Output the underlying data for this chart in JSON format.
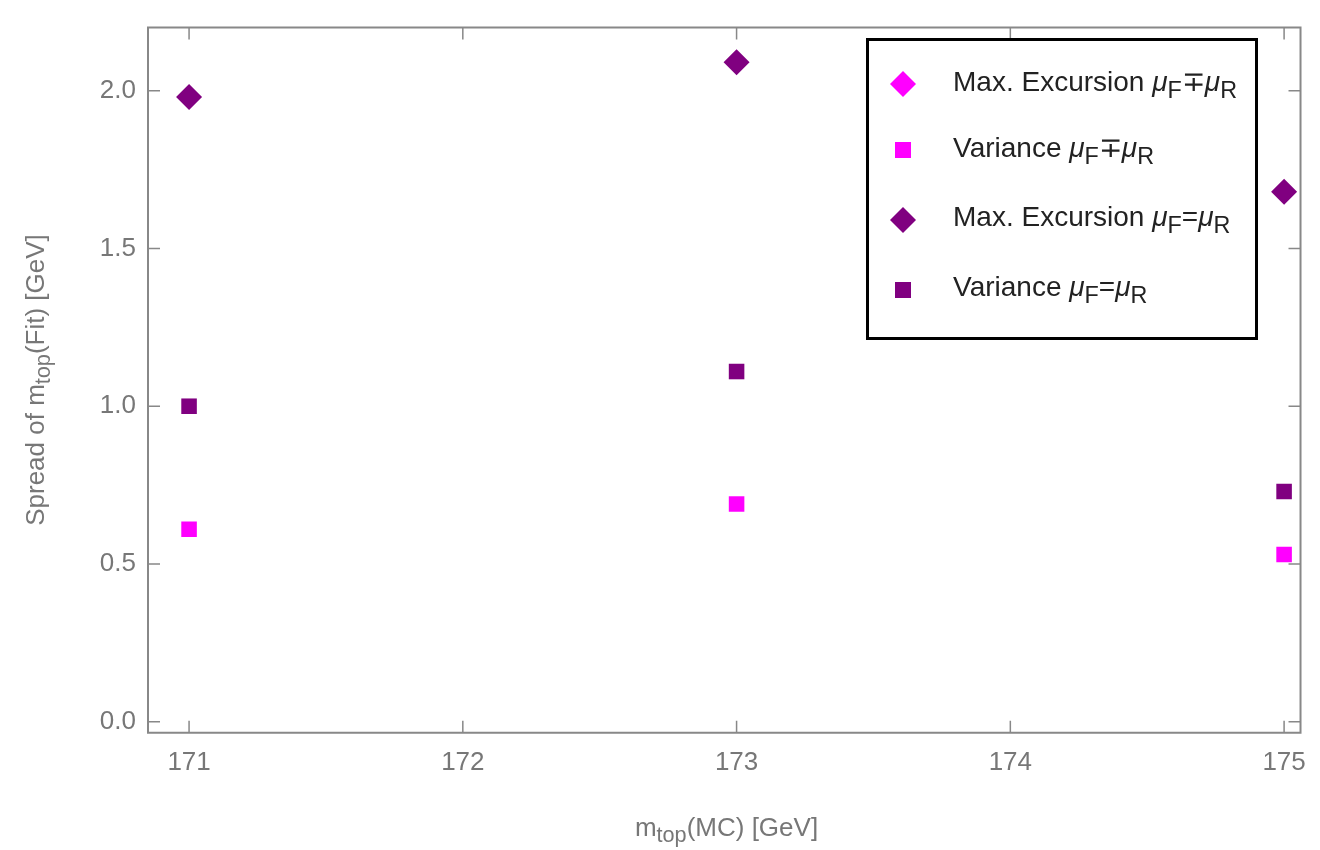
{
  "chart_data": {
    "type": "scatter",
    "xlabel": "m$_{top}$(MC) [GeV]",
    "ylabel": "Spread of m$_{top}$(Fit) [GeV]",
    "xlim": [
      170.85,
      175.06
    ],
    "xticks": [
      171,
      172,
      173,
      174,
      175
    ],
    "ylim": [
      -0.035,
      2.2
    ],
    "yticks": [
      {
        "value": 0,
        "label": "0.0"
      },
      {
        "value": 0.5,
        "label": "0.5"
      },
      {
        "value": 1,
        "label": "1.0"
      },
      {
        "value": 1.5,
        "label": "1.5"
      },
      {
        "value": 2,
        "label": "2.0"
      }
    ],
    "grid": false,
    "legend": "top right",
    "series": [
      {
        "name": "Max. Excursion μ$_{F}$∓μ$_{R}$",
        "color": "#ff00ff",
        "marker": "diamond"
      },
      {
        "name": "Variance μ$_{F}$∓μ$_{R}$",
        "color": "#ff00ff",
        "marker": "square",
        "x": [
          171,
          173,
          175
        ],
        "values": [
          0.61,
          0.69,
          0.53
        ]
      },
      {
        "name": "Max. Excursion μ$_{F}$=μ$_{R}$",
        "color": "#800080",
        "marker": "diamond",
        "x": [
          171,
          173,
          175
        ],
        "values": [
          1.98,
          2.09,
          1.68
        ]
      },
      {
        "name": "Variance μ$_{F}$=μ$_{R}$",
        "color": "#800080",
        "marker": "square",
        "x": [
          171,
          173,
          175
        ],
        "values": [
          1.0,
          1.11,
          0.73
        ]
      }
    ]
  }
}
